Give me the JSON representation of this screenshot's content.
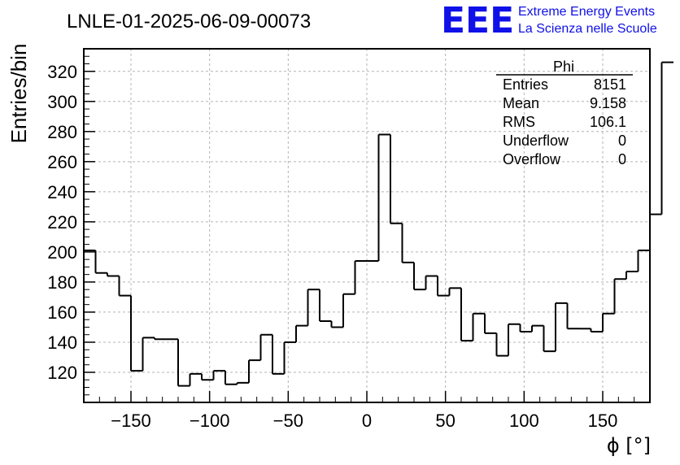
{
  "chart_data": {
    "type": "bar",
    "title": "LNLE-01-2025-06-09-00073",
    "xlabel": "ϕ [°]",
    "ylabel": "Entries/bin",
    "xlim": [
      -180,
      180
    ],
    "ylim": [
      100,
      335
    ],
    "xticks": [
      -150,
      -100,
      -50,
      0,
      50,
      100,
      150
    ],
    "yticks": [
      120,
      140,
      160,
      180,
      200,
      220,
      240,
      260,
      280,
      300,
      320
    ],
    "grid": true,
    "bin_edges_start": -180,
    "bin_width": 7.5,
    "values": [
      201,
      186,
      184,
      171,
      121,
      143,
      142,
      142,
      111,
      119,
      115,
      121,
      112,
      113,
      128,
      145,
      119,
      140,
      151,
      175,
      154,
      150,
      172,
      194,
      194,
      278,
      219,
      193,
      175,
      184,
      171,
      176,
      141,
      159,
      146,
      131,
      152,
      147,
      151,
      134,
      166,
      149,
      149,
      147,
      159,
      182,
      187,
      201,
      225,
      326
    ],
    "stats": {
      "name": "Phi",
      "rows": [
        {
          "label": "Entries",
          "value": "8151"
        },
        {
          "label": "Mean",
          "value": "9.158"
        },
        {
          "label": "RMS",
          "value": "106.1"
        },
        {
          "label": "Underflow",
          "value": "0"
        },
        {
          "label": "Overflow",
          "value": "0"
        }
      ]
    }
  },
  "logo": {
    "text": "EEE",
    "line1": "Extreme Energy Events",
    "line2": "La Scienza nelle Scuole"
  },
  "colors": {
    "line": "#000000",
    "grid": "#b4b4b4",
    "logo": "#1010e8"
  }
}
